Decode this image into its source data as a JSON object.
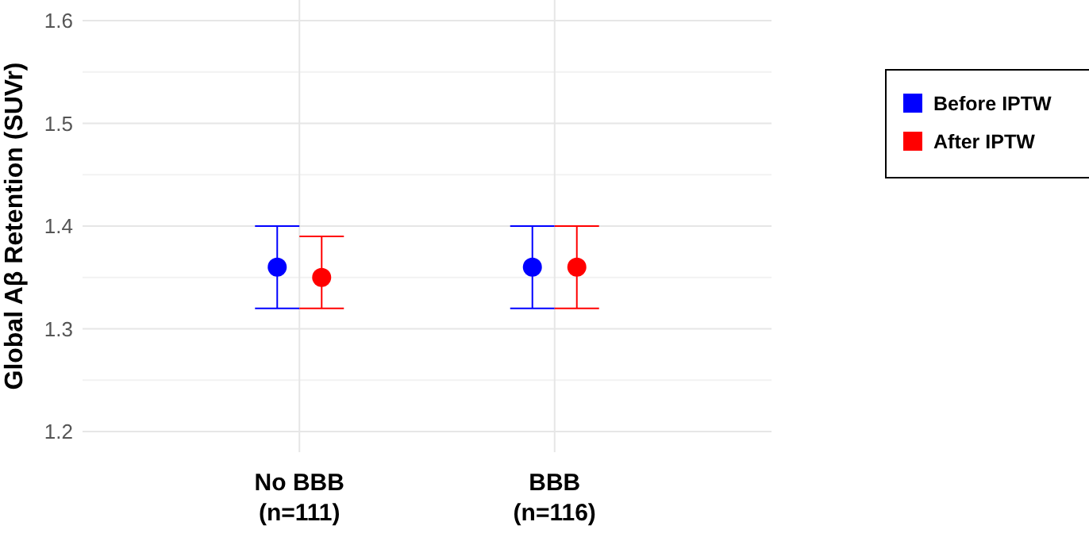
{
  "chart_data": {
    "type": "scatter",
    "ylabel": "Global Aβ Retention (SUVr)",
    "categories": [
      "No BBB\n(n=111)",
      "BBB\n(n=116)"
    ],
    "series": [
      {
        "name": "Before IPTW",
        "color": "#0000ff",
        "x": [
          "No BBB\n(n=111)",
          "BBB\n(n=116)"
        ],
        "values": [
          1.36,
          1.36
        ],
        "errors": [
          [
            1.32,
            1.4
          ],
          [
            1.32,
            1.4
          ]
        ]
      },
      {
        "name": "After IPTW",
        "color": "#ff0000",
        "x": [
          "No BBB\n(n=111)",
          "BBB\n(n=116)"
        ],
        "values": [
          1.35,
          1.36
        ],
        "errors": [
          [
            1.32,
            1.39
          ],
          [
            1.32,
            1.4
          ]
        ]
      }
    ],
    "ylim": [
      1.18,
      1.62
    ],
    "yticks": [
      1.2,
      {
        "value": 1.25,
        "label": null
      },
      1.3,
      {
        "value": 1.35,
        "label": null
      },
      1.4,
      {
        "value": 1.45,
        "label": null
      },
      1.5,
      {
        "value": 1.55,
        "label": null
      },
      1.6
    ],
    "grid": true,
    "legend": "right",
    "marker": "circle"
  }
}
